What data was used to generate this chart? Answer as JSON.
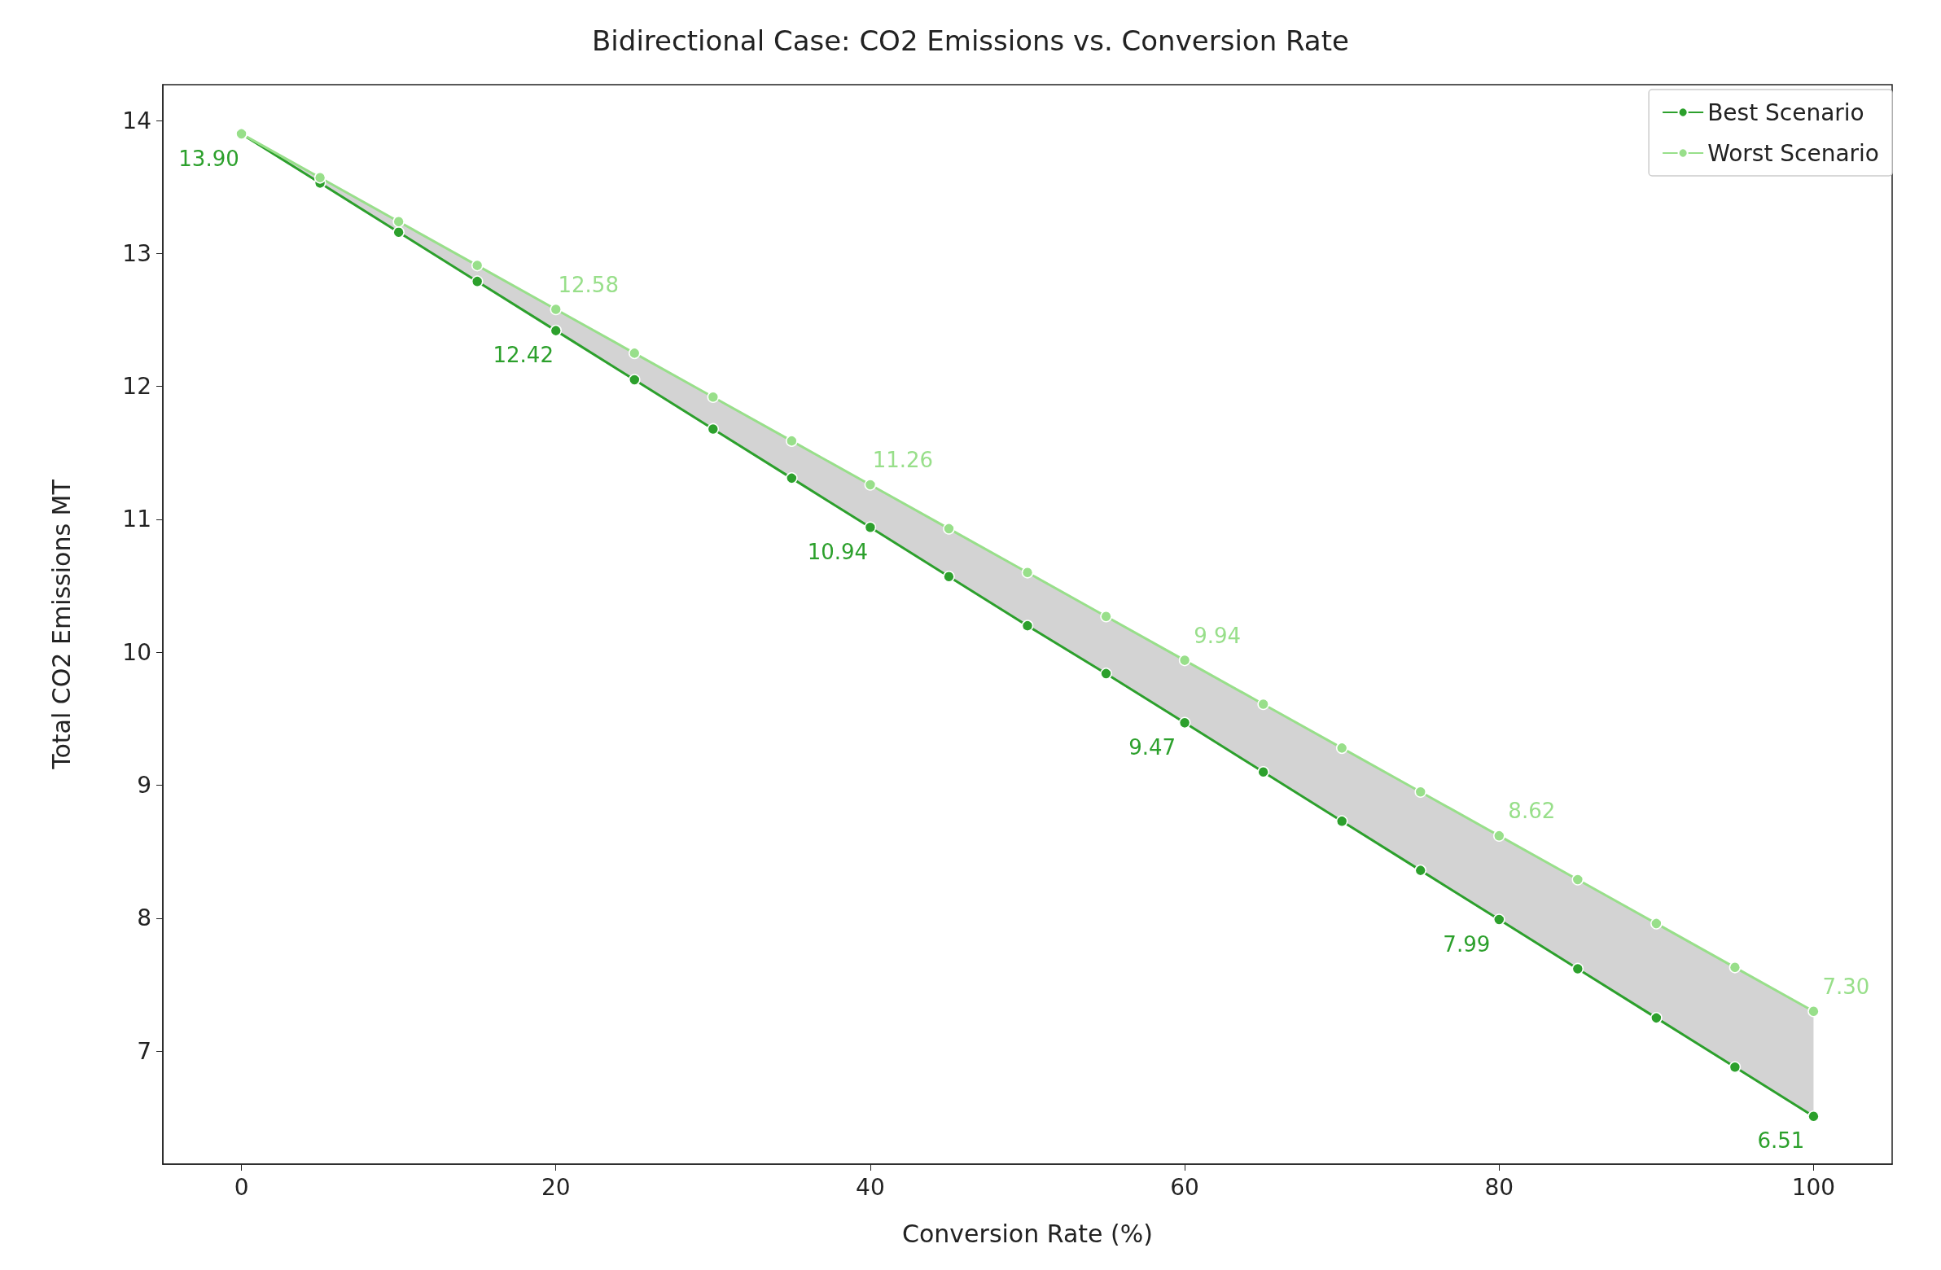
{
  "chart_data": {
    "type": "line",
    "title": "Bidirectional Case: CO2 Emissions vs. Conversion Rate",
    "xlabel": "Conversion Rate (%)",
    "ylabel": "Total CO2 Emissions MT",
    "x": [
      0,
      5,
      10,
      15,
      20,
      25,
      30,
      35,
      40,
      45,
      50,
      55,
      60,
      65,
      70,
      75,
      80,
      85,
      90,
      95,
      100
    ],
    "series": [
      {
        "name": "Best Scenario",
        "color": "#2ca02c",
        "values": [
          13.9,
          13.53,
          13.16,
          12.79,
          12.42,
          12.05,
          11.68,
          11.31,
          10.94,
          10.57,
          10.2,
          9.84,
          9.47,
          9.1,
          8.73,
          8.36,
          7.99,
          7.62,
          7.25,
          6.88,
          6.51
        ],
        "value_labels": [
          "13.90",
          null,
          null,
          null,
          "12.42",
          null,
          null,
          null,
          "10.94",
          null,
          null,
          null,
          "9.47",
          null,
          null,
          null,
          "7.99",
          null,
          null,
          null,
          "6.51"
        ],
        "lower": [
          13.9,
          13.53,
          13.16,
          12.79,
          12.42,
          12.05,
          11.68,
          11.31,
          10.94,
          10.57,
          10.2,
          9.84,
          9.47,
          9.1,
          8.73,
          8.36,
          7.99,
          7.62,
          7.25,
          6.88,
          6.51
        ],
        "upper": [
          13.9,
          13.57,
          13.24,
          12.91,
          12.58,
          12.25,
          11.92,
          11.59,
          11.26,
          10.93,
          10.6,
          10.27,
          9.94,
          9.61,
          9.28,
          8.95,
          8.62,
          8.29,
          7.96,
          7.63,
          7.3
        ]
      },
      {
        "name": "Worst Scenario",
        "color": "#98df8a",
        "values": [
          13.9,
          13.57,
          13.24,
          12.91,
          12.58,
          12.25,
          11.92,
          11.59,
          11.26,
          10.93,
          10.6,
          10.27,
          9.94,
          9.61,
          9.28,
          8.95,
          8.62,
          8.29,
          7.96,
          7.63,
          7.3
        ],
        "value_labels": [
          null,
          null,
          null,
          null,
          "12.58",
          null,
          null,
          null,
          "11.26",
          null,
          null,
          null,
          "9.94",
          null,
          null,
          null,
          "8.62",
          null,
          null,
          null,
          "7.30"
        ]
      }
    ],
    "xlim": [
      -5,
      105
    ],
    "xticks": [
      0,
      20,
      40,
      60,
      80,
      100
    ],
    "ylim": [
      6.15,
      14.27
    ],
    "yticks": [
      7,
      8,
      9,
      10,
      11,
      12,
      13,
      14
    ],
    "grid": false,
    "legend": "top right",
    "marker": "circle",
    "line_style": "solid"
  }
}
